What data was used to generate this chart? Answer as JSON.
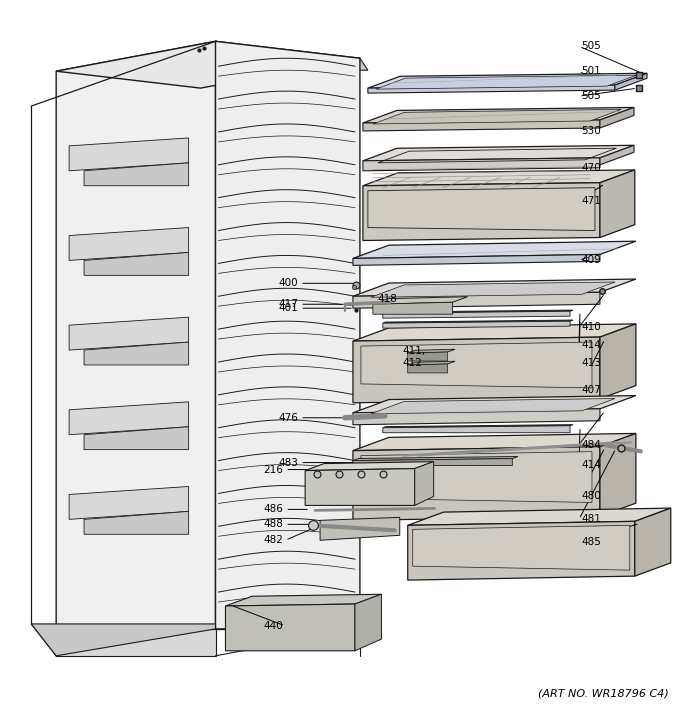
{
  "art_no": "(ART NO. WR18796 C4)",
  "bg_color": "#ffffff",
  "lc": "#1a1a1a",
  "figsize": [
    6.8,
    7.25
  ],
  "dpi": 100
}
